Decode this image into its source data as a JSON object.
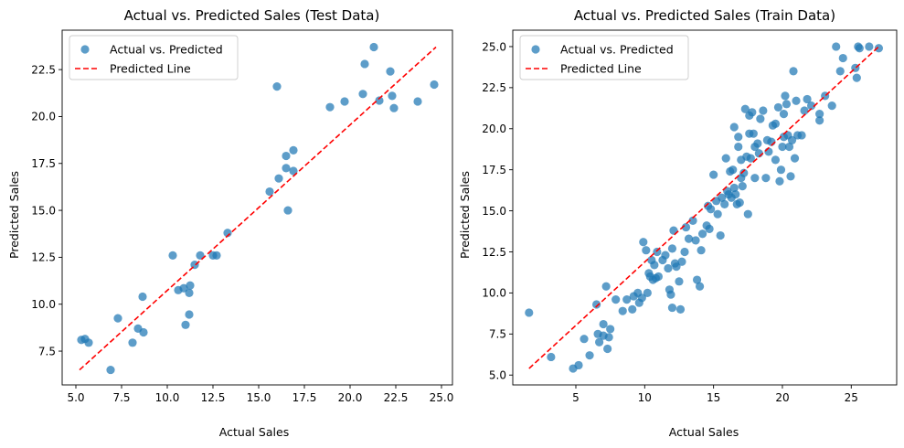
{
  "chart_data": [
    {
      "type": "scatter",
      "title": "Actual vs. Predicted Sales (Test Data)",
      "xlabel": "Actual Sales",
      "ylabel": "Predicted Sales",
      "xlim": [
        4.25,
        25.6
      ],
      "ylim": [
        5.7,
        24.6
      ],
      "xticks": [
        "5.0",
        "7.5",
        "10.0",
        "12.5",
        "15.0",
        "17.5",
        "20.0",
        "22.5",
        "25.0"
      ],
      "yticks": [
        "7.5",
        "10.0",
        "12.5",
        "15.0",
        "17.5",
        "20.0",
        "22.5"
      ],
      "grid": false,
      "legend_position": "upper-left",
      "series": [
        {
          "name": "Actual vs. Predicted",
          "kind": "points",
          "color": "#1f77b4",
          "points": [
            [
              5.3,
              8.1
            ],
            [
              5.5,
              8.15
            ],
            [
              5.7,
              7.95
            ],
            [
              6.9,
              6.5
            ],
            [
              7.3,
              9.25
            ],
            [
              8.1,
              7.95
            ],
            [
              8.4,
              8.7
            ],
            [
              8.65,
              10.4
            ],
            [
              8.7,
              8.5
            ],
            [
              10.3,
              12.6
            ],
            [
              10.6,
              10.75
            ],
            [
              10.9,
              10.85
            ],
            [
              11.0,
              8.9
            ],
            [
              11.2,
              10.6
            ],
            [
              11.2,
              9.45
            ],
            [
              11.25,
              11.0
            ],
            [
              11.5,
              12.1
            ],
            [
              11.8,
              12.6
            ],
            [
              12.5,
              12.6
            ],
            [
              12.7,
              12.6
            ],
            [
              13.3,
              13.8
            ],
            [
              15.6,
              16.0
            ],
            [
              16.0,
              21.6
            ],
            [
              16.1,
              16.7
            ],
            [
              16.5,
              17.25
            ],
            [
              16.5,
              17.9
            ],
            [
              16.6,
              15.0
            ],
            [
              16.9,
              17.1
            ],
            [
              16.9,
              18.2
            ],
            [
              18.9,
              20.5
            ],
            [
              19.7,
              20.8
            ],
            [
              20.7,
              21.2
            ],
            [
              20.8,
              22.8
            ],
            [
              21.3,
              23.7
            ],
            [
              21.6,
              20.85
            ],
            [
              22.2,
              22.4
            ],
            [
              22.3,
              21.1
            ],
            [
              22.4,
              20.45
            ],
            [
              23.7,
              20.8
            ],
            [
              24.6,
              21.7
            ]
          ]
        },
        {
          "name": "Predicted Line",
          "kind": "line",
          "color": "#ff0000",
          "dashed": true,
          "x": [
            5.2,
            24.7
          ],
          "y": [
            6.5,
            23.7
          ]
        }
      ]
    },
    {
      "type": "scatter",
      "title": "Actual vs. Predicted Sales (Train Data)",
      "xlabel": "Actual Sales",
      "ylabel": "Predicted Sales",
      "xlim": [
        0.42,
        28.3
      ],
      "ylim": [
        4.4,
        26.0
      ],
      "xticks": [
        "5",
        "10",
        "15",
        "20",
        "25"
      ],
      "yticks": [
        "5.0",
        "7.5",
        "10.0",
        "12.5",
        "15.0",
        "17.5",
        "20.0",
        "22.5",
        "25.0"
      ],
      "grid": false,
      "legend_position": "upper-left",
      "series": [
        {
          "name": "Actual vs. Predicted",
          "kind": "points",
          "color": "#1f77b4",
          "points": [
            [
              1.6,
              8.8
            ],
            [
              3.2,
              6.1
            ],
            [
              4.8,
              5.4
            ],
            [
              5.2,
              5.6
            ],
            [
              5.6,
              7.2
            ],
            [
              6.0,
              6.2
            ],
            [
              6.5,
              9.3
            ],
            [
              6.6,
              7.5
            ],
            [
              6.7,
              7.0
            ],
            [
              7.0,
              7.4
            ],
            [
              7.0,
              8.1
            ],
            [
              7.2,
              10.4
            ],
            [
              7.3,
              6.6
            ],
            [
              7.5,
              7.8
            ],
            [
              7.4,
              7.3
            ],
            [
              7.9,
              9.6
            ],
            [
              8.4,
              8.9
            ],
            [
              8.7,
              9.6
            ],
            [
              9.1,
              9.0
            ],
            [
              9.2,
              9.8
            ],
            [
              9.5,
              10.0
            ],
            [
              9.6,
              9.4
            ],
            [
              9.8,
              9.7
            ],
            [
              9.9,
              13.1
            ],
            [
              10.1,
              12.6
            ],
            [
              10.2,
              10.0
            ],
            [
              10.3,
              11.2
            ],
            [
              10.4,
              11.0
            ],
            [
              10.5,
              12.0
            ],
            [
              10.6,
              10.8
            ],
            [
              10.8,
              10.9
            ],
            [
              10.7,
              11.7
            ],
            [
              10.9,
              12.5
            ],
            [
              11.0,
              11.0
            ],
            [
              11.3,
              12.0
            ],
            [
              11.5,
              12.3
            ],
            [
              11.7,
              11.5
            ],
            [
              11.8,
              10.2
            ],
            [
              11.9,
              9.9
            ],
            [
              12.0,
              9.1
            ],
            [
              12.0,
              12.7
            ],
            [
              12.1,
              13.8
            ],
            [
              12.2,
              11.8
            ],
            [
              12.3,
              11.6
            ],
            [
              12.5,
              10.7
            ],
            [
              12.6,
              9.0
            ],
            [
              12.7,
              11.9
            ],
            [
              12.9,
              12.5
            ],
            [
              13.0,
              14.0
            ],
            [
              13.2,
              13.3
            ],
            [
              13.5,
              14.4
            ],
            [
              13.7,
              13.2
            ],
            [
              13.8,
              10.8
            ],
            [
              14.0,
              10.4
            ],
            [
              14.1,
              12.6
            ],
            [
              14.2,
              13.6
            ],
            [
              14.5,
              14.1
            ],
            [
              14.6,
              15.3
            ],
            [
              14.7,
              13.9
            ],
            [
              14.8,
              15.1
            ],
            [
              15.0,
              17.2
            ],
            [
              15.2,
              15.6
            ],
            [
              15.3,
              14.8
            ],
            [
              15.5,
              13.5
            ],
            [
              15.6,
              15.8
            ],
            [
              15.8,
              15.4
            ],
            [
              15.9,
              18.2
            ],
            [
              16.0,
              16.2
            ],
            [
              16.1,
              16.0
            ],
            [
              16.2,
              17.4
            ],
            [
              16.3,
              15.8
            ],
            [
              16.4,
              17.5
            ],
            [
              16.5,
              20.1
            ],
            [
              16.5,
              16.4
            ],
            [
              16.6,
              16.0
            ],
            [
              16.7,
              15.4
            ],
            [
              16.8,
              18.9
            ],
            [
              16.8,
              19.5
            ],
            [
              16.9,
              15.5
            ],
            [
              17.0,
              17.0
            ],
            [
              17.0,
              18.1
            ],
            [
              17.1,
              16.5
            ],
            [
              17.2,
              17.3
            ],
            [
              17.3,
              21.2
            ],
            [
              17.4,
              18.3
            ],
            [
              17.5,
              14.8
            ],
            [
              17.6,
              20.8
            ],
            [
              17.6,
              19.7
            ],
            [
              17.7,
              18.2
            ],
            [
              17.8,
              21.0
            ],
            [
              17.9,
              19.7
            ],
            [
              18.0,
              17.0
            ],
            [
              18.0,
              18.9
            ],
            [
              18.2,
              19.1
            ],
            [
              18.3,
              18.5
            ],
            [
              18.4,
              20.6
            ],
            [
              18.6,
              21.1
            ],
            [
              18.8,
              17.0
            ],
            [
              18.9,
              19.3
            ],
            [
              19.0,
              18.6
            ],
            [
              19.2,
              19.2
            ],
            [
              19.3,
              20.2
            ],
            [
              19.5,
              20.3
            ],
            [
              19.5,
              18.1
            ],
            [
              19.7,
              21.3
            ],
            [
              19.8,
              16.8
            ],
            [
              19.9,
              17.5
            ],
            [
              20.0,
              18.9
            ],
            [
              20.1,
              19.5
            ],
            [
              20.1,
              20.9
            ],
            [
              20.2,
              22.0
            ],
            [
              20.3,
              21.5
            ],
            [
              20.4,
              19.6
            ],
            [
              20.5,
              18.9
            ],
            [
              20.6,
              17.1
            ],
            [
              20.7,
              19.3
            ],
            [
              20.8,
              23.5
            ],
            [
              20.9,
              18.2
            ],
            [
              21.0,
              21.7
            ],
            [
              21.1,
              19.6
            ],
            [
              21.4,
              19.6
            ],
            [
              21.6,
              21.1
            ],
            [
              21.8,
              21.8
            ],
            [
              22.1,
              21.4
            ],
            [
              22.7,
              20.9
            ],
            [
              22.7,
              20.5
            ],
            [
              23.1,
              22.0
            ],
            [
              23.6,
              21.4
            ],
            [
              23.9,
              25.0
            ],
            [
              24.2,
              23.5
            ],
            [
              24.4,
              24.3
            ],
            [
              25.3,
              23.7
            ],
            [
              25.4,
              23.1
            ],
            [
              25.5,
              25.0
            ],
            [
              25.6,
              24.9
            ],
            [
              26.3,
              25.0
            ],
            [
              27.0,
              24.9
            ]
          ]
        },
        {
          "name": "Predicted Line",
          "kind": "line",
          "color": "#ff0000",
          "dashed": true,
          "x": [
            1.6,
            27.0
          ],
          "y": [
            5.4,
            25.0
          ]
        }
      ]
    }
  ]
}
